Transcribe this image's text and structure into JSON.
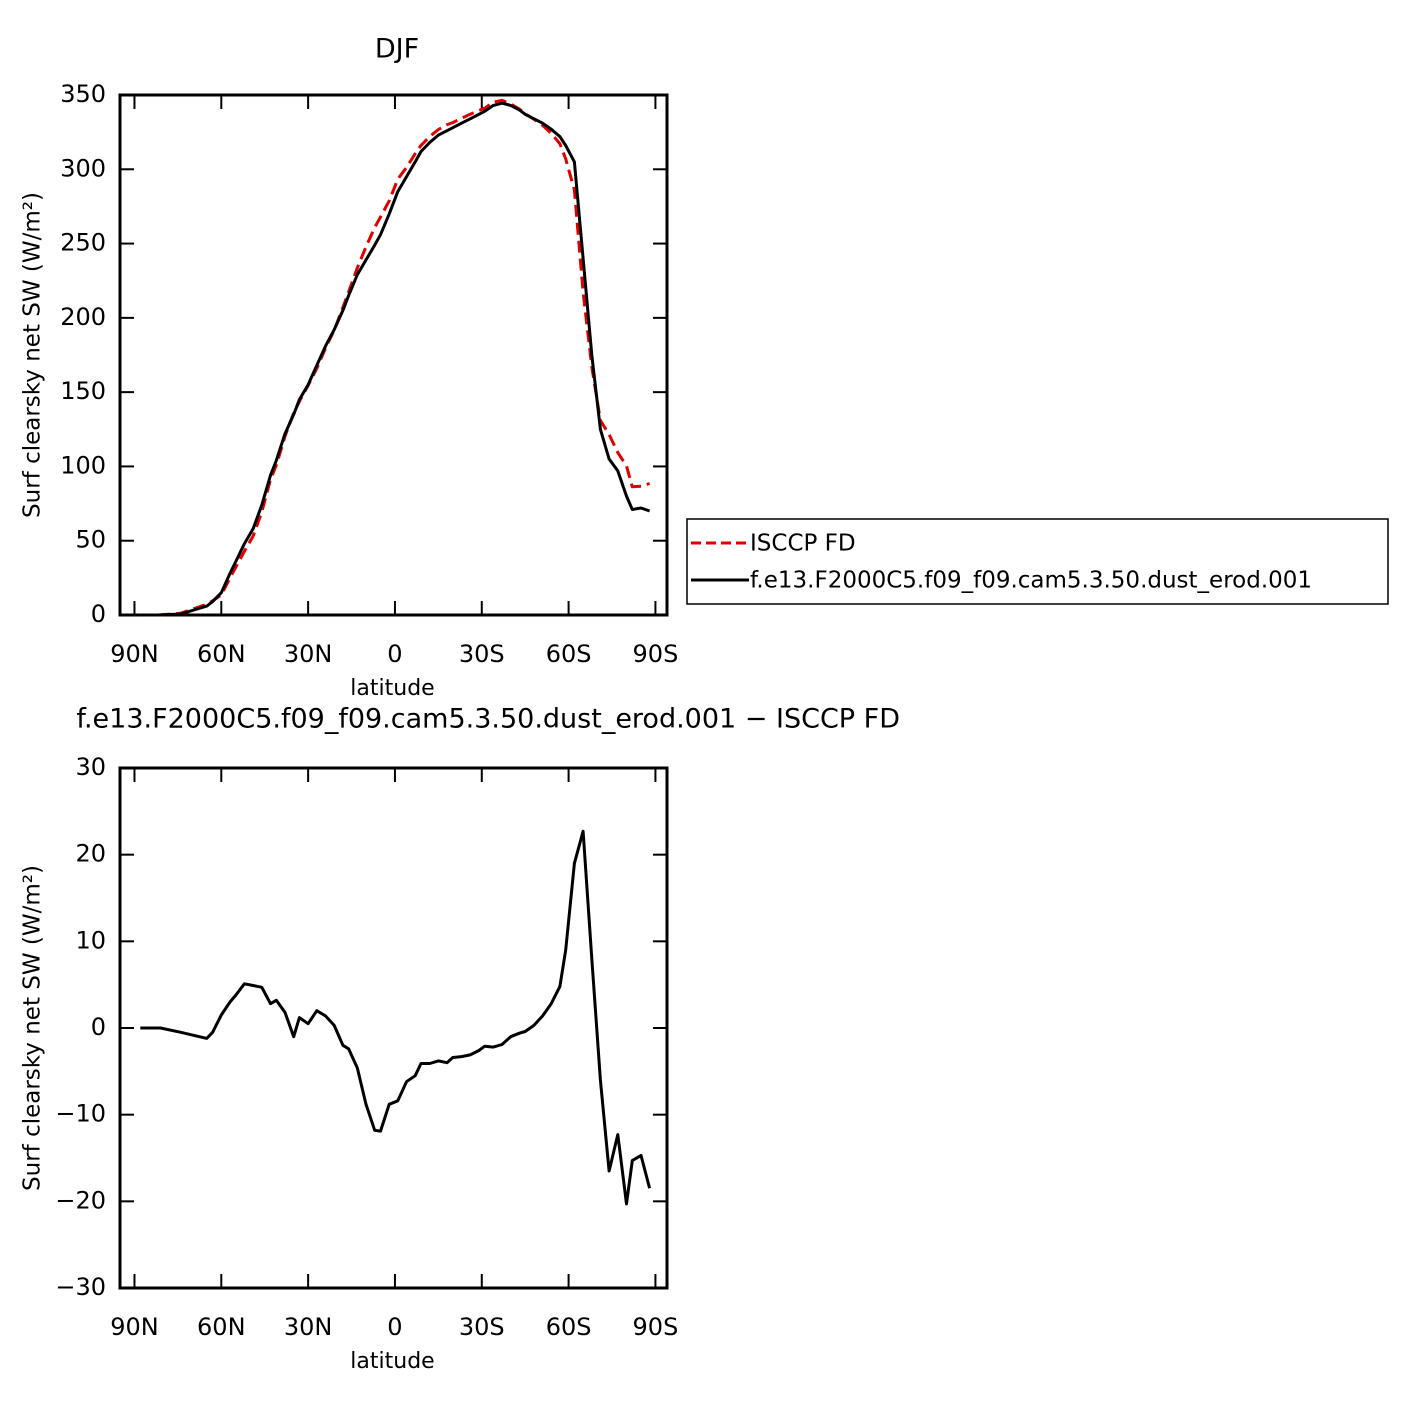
{
  "chart_data": [
    {
      "type": "line",
      "title": "DJF",
      "xlabel": "latitude",
      "ylabel": "Surf clearsky net SW (W/m²)",
      "x": [
        88,
        81,
        74,
        65,
        63,
        60,
        57,
        55,
        52,
        49,
        46,
        43,
        41,
        38,
        35,
        33,
        30,
        27,
        24,
        21,
        18,
        16,
        13,
        10,
        7,
        5,
        2,
        -1,
        -4,
        -7,
        -9,
        -12,
        -15,
        -18,
        -20,
        -23,
        -26,
        -29,
        -31,
        -34,
        -37,
        -40,
        -43,
        -45,
        -48,
        -51,
        -54,
        -57,
        -59,
        -62,
        -65,
        -68,
        -71,
        -74,
        -77,
        -80,
        -82,
        -85,
        -88
      ],
      "series": [
        {
          "name": "ISCCP FD",
          "color": "#e00000",
          "linestyle": "dashed",
          "values": [
            0,
            0.1,
            1.2,
            7.2,
            9.5,
            13.5,
            25,
            32.2,
            42.9,
            53.1,
            69.3,
            91.2,
            100.8,
            120.2,
            136,
            143.8,
            154.5,
            166,
            179.6,
            191.7,
            207,
            217.4,
            233.6,
            247.8,
            260.8,
            267.9,
            278.8,
            293.4,
            301.2,
            310.5,
            316.1,
            322.1,
            326.8,
            330,
            331.4,
            334.3,
            337.1,
            339.6,
            341.1,
            345.2,
            346.4,
            344,
            340.6,
            337.4,
            333.7,
            329.6,
            324.2,
            317.2,
            307,
            286,
            217.3,
            167,
            131,
            121.5,
            109.3,
            100.3,
            86.3,
            86.7,
            88.5
          ]
        },
        {
          "name": "f.e13.F2000C5.f09_f09.cam5.3.50.dust_erod.001",
          "color": "#000000",
          "linestyle": "solid",
          "values": [
            0,
            0.1,
            0.7,
            6,
            9,
            15,
            28,
            36,
            48,
            58,
            74,
            94,
            104,
            122,
            135,
            145,
            155,
            168,
            181,
            192,
            205,
            215,
            229,
            239,
            249,
            256,
            270,
            285,
            295,
            305,
            312,
            318,
            323,
            326,
            328,
            331,
            334,
            337,
            339,
            343,
            344.5,
            343,
            340,
            337,
            334,
            331,
            327,
            322,
            316,
            305,
            240,
            175,
            125,
            105,
            97,
            80,
            71,
            72,
            70
          ]
        }
      ],
      "xlim": [
        95,
        -94
      ],
      "ylim": [
        0,
        350
      ],
      "xticks": [
        {
          "value": 90,
          "label": "90N"
        },
        {
          "value": 60,
          "label": "60N"
        },
        {
          "value": 30,
          "label": "30N"
        },
        0,
        {
          "value": -30,
          "label": "30S"
        },
        {
          "value": -60,
          "label": "60S"
        },
        {
          "value": -90,
          "label": "90S"
        }
      ],
      "yticks": [
        0,
        50,
        100,
        150,
        200,
        250,
        300,
        350
      ],
      "legend": "right"
    },
    {
      "type": "line",
      "title": "f.e13.F2000C5.f09_f09.cam5.3.50.dust_erod.001 − ISCCP FD",
      "xlabel": "latitude",
      "ylabel": "Surf clearsky net SW (W/m²)",
      "x": [
        88,
        81,
        74,
        65,
        63,
        60,
        57,
        55,
        52,
        49,
        46,
        43,
        41,
        38,
        35,
        33,
        30,
        27,
        24,
        21,
        18,
        16,
        13,
        10,
        7,
        5,
        2,
        -1,
        -4,
        -7,
        -9,
        -12,
        -15,
        -18,
        -20,
        -23,
        -26,
        -29,
        -31,
        -34,
        -37,
        -40,
        -43,
        -45,
        -48,
        -51,
        -54,
        -57,
        -59,
        -62,
        -65,
        -68,
        -71,
        -74,
        -77,
        -80,
        -82,
        -85,
        -88
      ],
      "color": "#000000",
      "values": [
        0,
        0,
        -0.5,
        -1.2,
        -0.5,
        1.5,
        3,
        3.8,
        5.1,
        4.9,
        4.7,
        2.8,
        3.2,
        1.8,
        -1,
        1.2,
        0.5,
        2,
        1.4,
        0.3,
        -2,
        -2.4,
        -4.6,
        -8.8,
        -11.8,
        -11.9,
        -8.8,
        -8.4,
        -6.2,
        -5.5,
        -4.1,
        -4.1,
        -3.8,
        -4,
        -3.4,
        -3.3,
        -3.1,
        -2.6,
        -2.1,
        -2.2,
        -1.9,
        -1,
        -0.6,
        -0.4,
        0.3,
        1.4,
        2.8,
        4.8,
        9,
        19,
        22.7,
        8,
        -6,
        -16.5,
        -12.3,
        -20.3,
        -15.3,
        -14.7,
        -18.5
      ],
      "xlim": [
        95,
        -94
      ],
      "ylim": [
        -30,
        30
      ],
      "xticks": [
        {
          "value": 90,
          "label": "90N"
        },
        {
          "value": 60,
          "label": "60N"
        },
        {
          "value": 30,
          "label": "30N"
        },
        0,
        {
          "value": -30,
          "label": "30S"
        },
        {
          "value": -60,
          "label": "60S"
        },
        {
          "value": -90,
          "label": "90S"
        }
      ],
      "yticks": [
        {
          "value": -30,
          "label": "−30"
        },
        {
          "value": -20,
          "label": "−20"
        },
        {
          "value": -10,
          "label": "−10"
        },
        0,
        10,
        20,
        30
      ]
    }
  ]
}
